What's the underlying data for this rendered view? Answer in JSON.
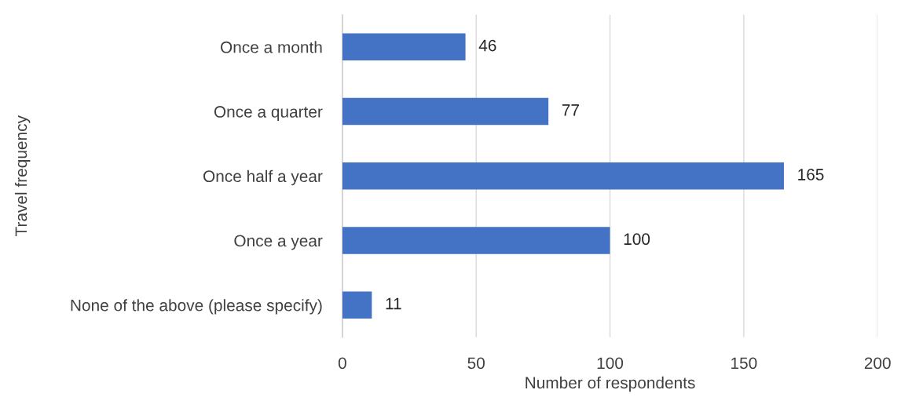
{
  "chart_data": {
    "type": "bar",
    "orientation": "horizontal",
    "xlabel": "Number of respondents",
    "ylabel": "Travel frequency",
    "categories": [
      "Once a month",
      "Once a quarter",
      "Once half a year",
      "Once a year",
      "None of the above (please specify)"
    ],
    "values": [
      46,
      77,
      165,
      100,
      11
    ],
    "color": "#4472c4",
    "xlim": [
      0,
      200
    ],
    "xticks": [
      0,
      50,
      100,
      150,
      200
    ],
    "grid": "x",
    "data_labels": true
  }
}
